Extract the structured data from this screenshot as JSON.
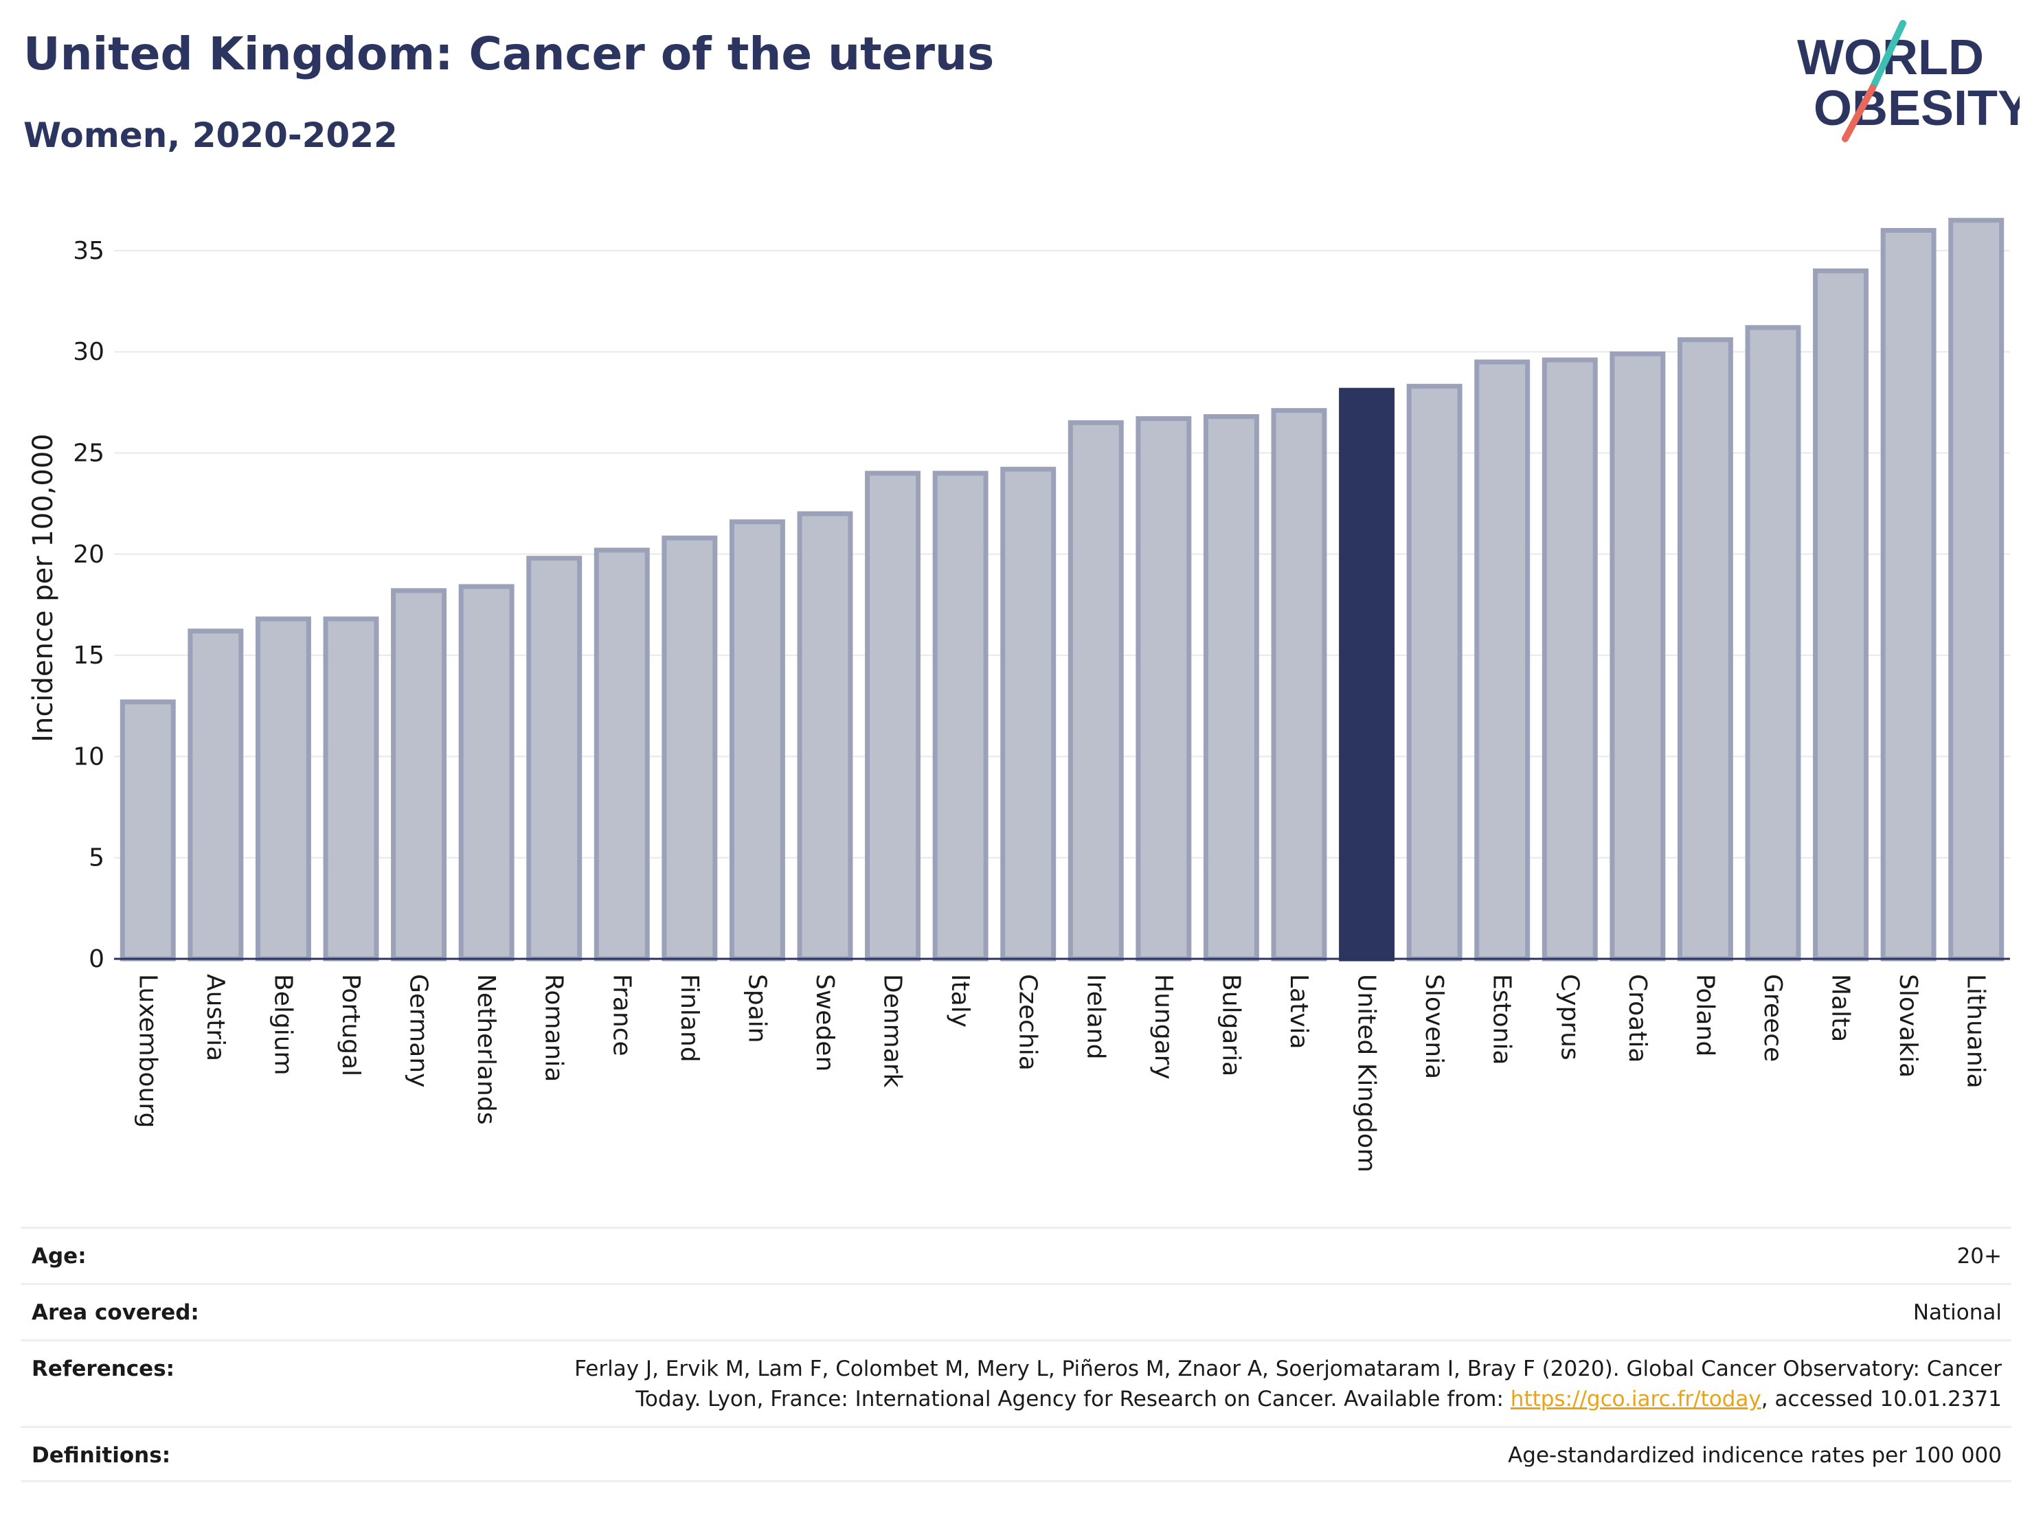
{
  "header": {
    "title": "United Kingdom: Cancer of the uterus",
    "subtitle": "Women, 2020-2022"
  },
  "logo": {
    "line1": "WORLD",
    "line2": "OBESITY",
    "slash_teal": "#3dbfb4",
    "slash_coral": "#e8685a",
    "text_color": "#2b3560"
  },
  "chart_data": {
    "type": "bar",
    "title": "United Kingdom: Cancer of the uterus",
    "subtitle": "Women, 2020-2022",
    "xlabel": "",
    "ylabel": "Incidence per 100,000",
    "ylim": [
      0,
      37
    ],
    "yticks": [
      0,
      5,
      10,
      15,
      20,
      25,
      30,
      35
    ],
    "grid": true,
    "highlight": "United Kingdom",
    "colors": {
      "bar_fill": "#bcc0cd",
      "bar_edge": "#9ba1b8",
      "highlight_fill": "#2b3560",
      "grid": "#e8e8ee",
      "axis": "#2b3560"
    },
    "categories": [
      "Luxembourg",
      "Austria",
      "Belgium",
      "Portugal",
      "Germany",
      "Netherlands",
      "Romania",
      "France",
      "Finland",
      "Spain",
      "Sweden",
      "Denmark",
      "Italy",
      "Czechia",
      "Ireland",
      "Hungary",
      "Bulgaria",
      "Latvia",
      "United Kingdom",
      "Slovenia",
      "Estonia",
      "Cyprus",
      "Croatia",
      "Poland",
      "Greece",
      "Malta",
      "Slovakia",
      "Lithuania"
    ],
    "values": [
      12.7,
      16.2,
      16.8,
      16.8,
      18.2,
      18.4,
      19.8,
      20.2,
      20.8,
      21.6,
      22.0,
      24.0,
      24.0,
      24.2,
      26.5,
      26.7,
      26.8,
      27.1,
      28.1,
      28.3,
      29.5,
      29.6,
      29.9,
      30.6,
      31.2,
      34.0,
      36.0,
      36.5
    ]
  },
  "meta": [
    {
      "label": "Age:",
      "value": "20+"
    },
    {
      "label": "Area covered:",
      "value": "National"
    },
    {
      "label": "References:",
      "value_line1": "Ferlay J, Ervik M, Lam F, Colombet M, Mery L, Piñeros M, Znaor A, Soerjomataram I, Bray F (2020). Global Cancer Observatory: Cancer",
      "value_line2_pre": "Today. Lyon, France: International Agency for Research on Cancer. Available from: ",
      "link_text": "https://gco.iarc.fr/today",
      "value_line2_post": ", accessed 10.01.2371"
    },
    {
      "label": "Definitions:",
      "value": "Age-standardized indicence rates per 100 000"
    }
  ]
}
